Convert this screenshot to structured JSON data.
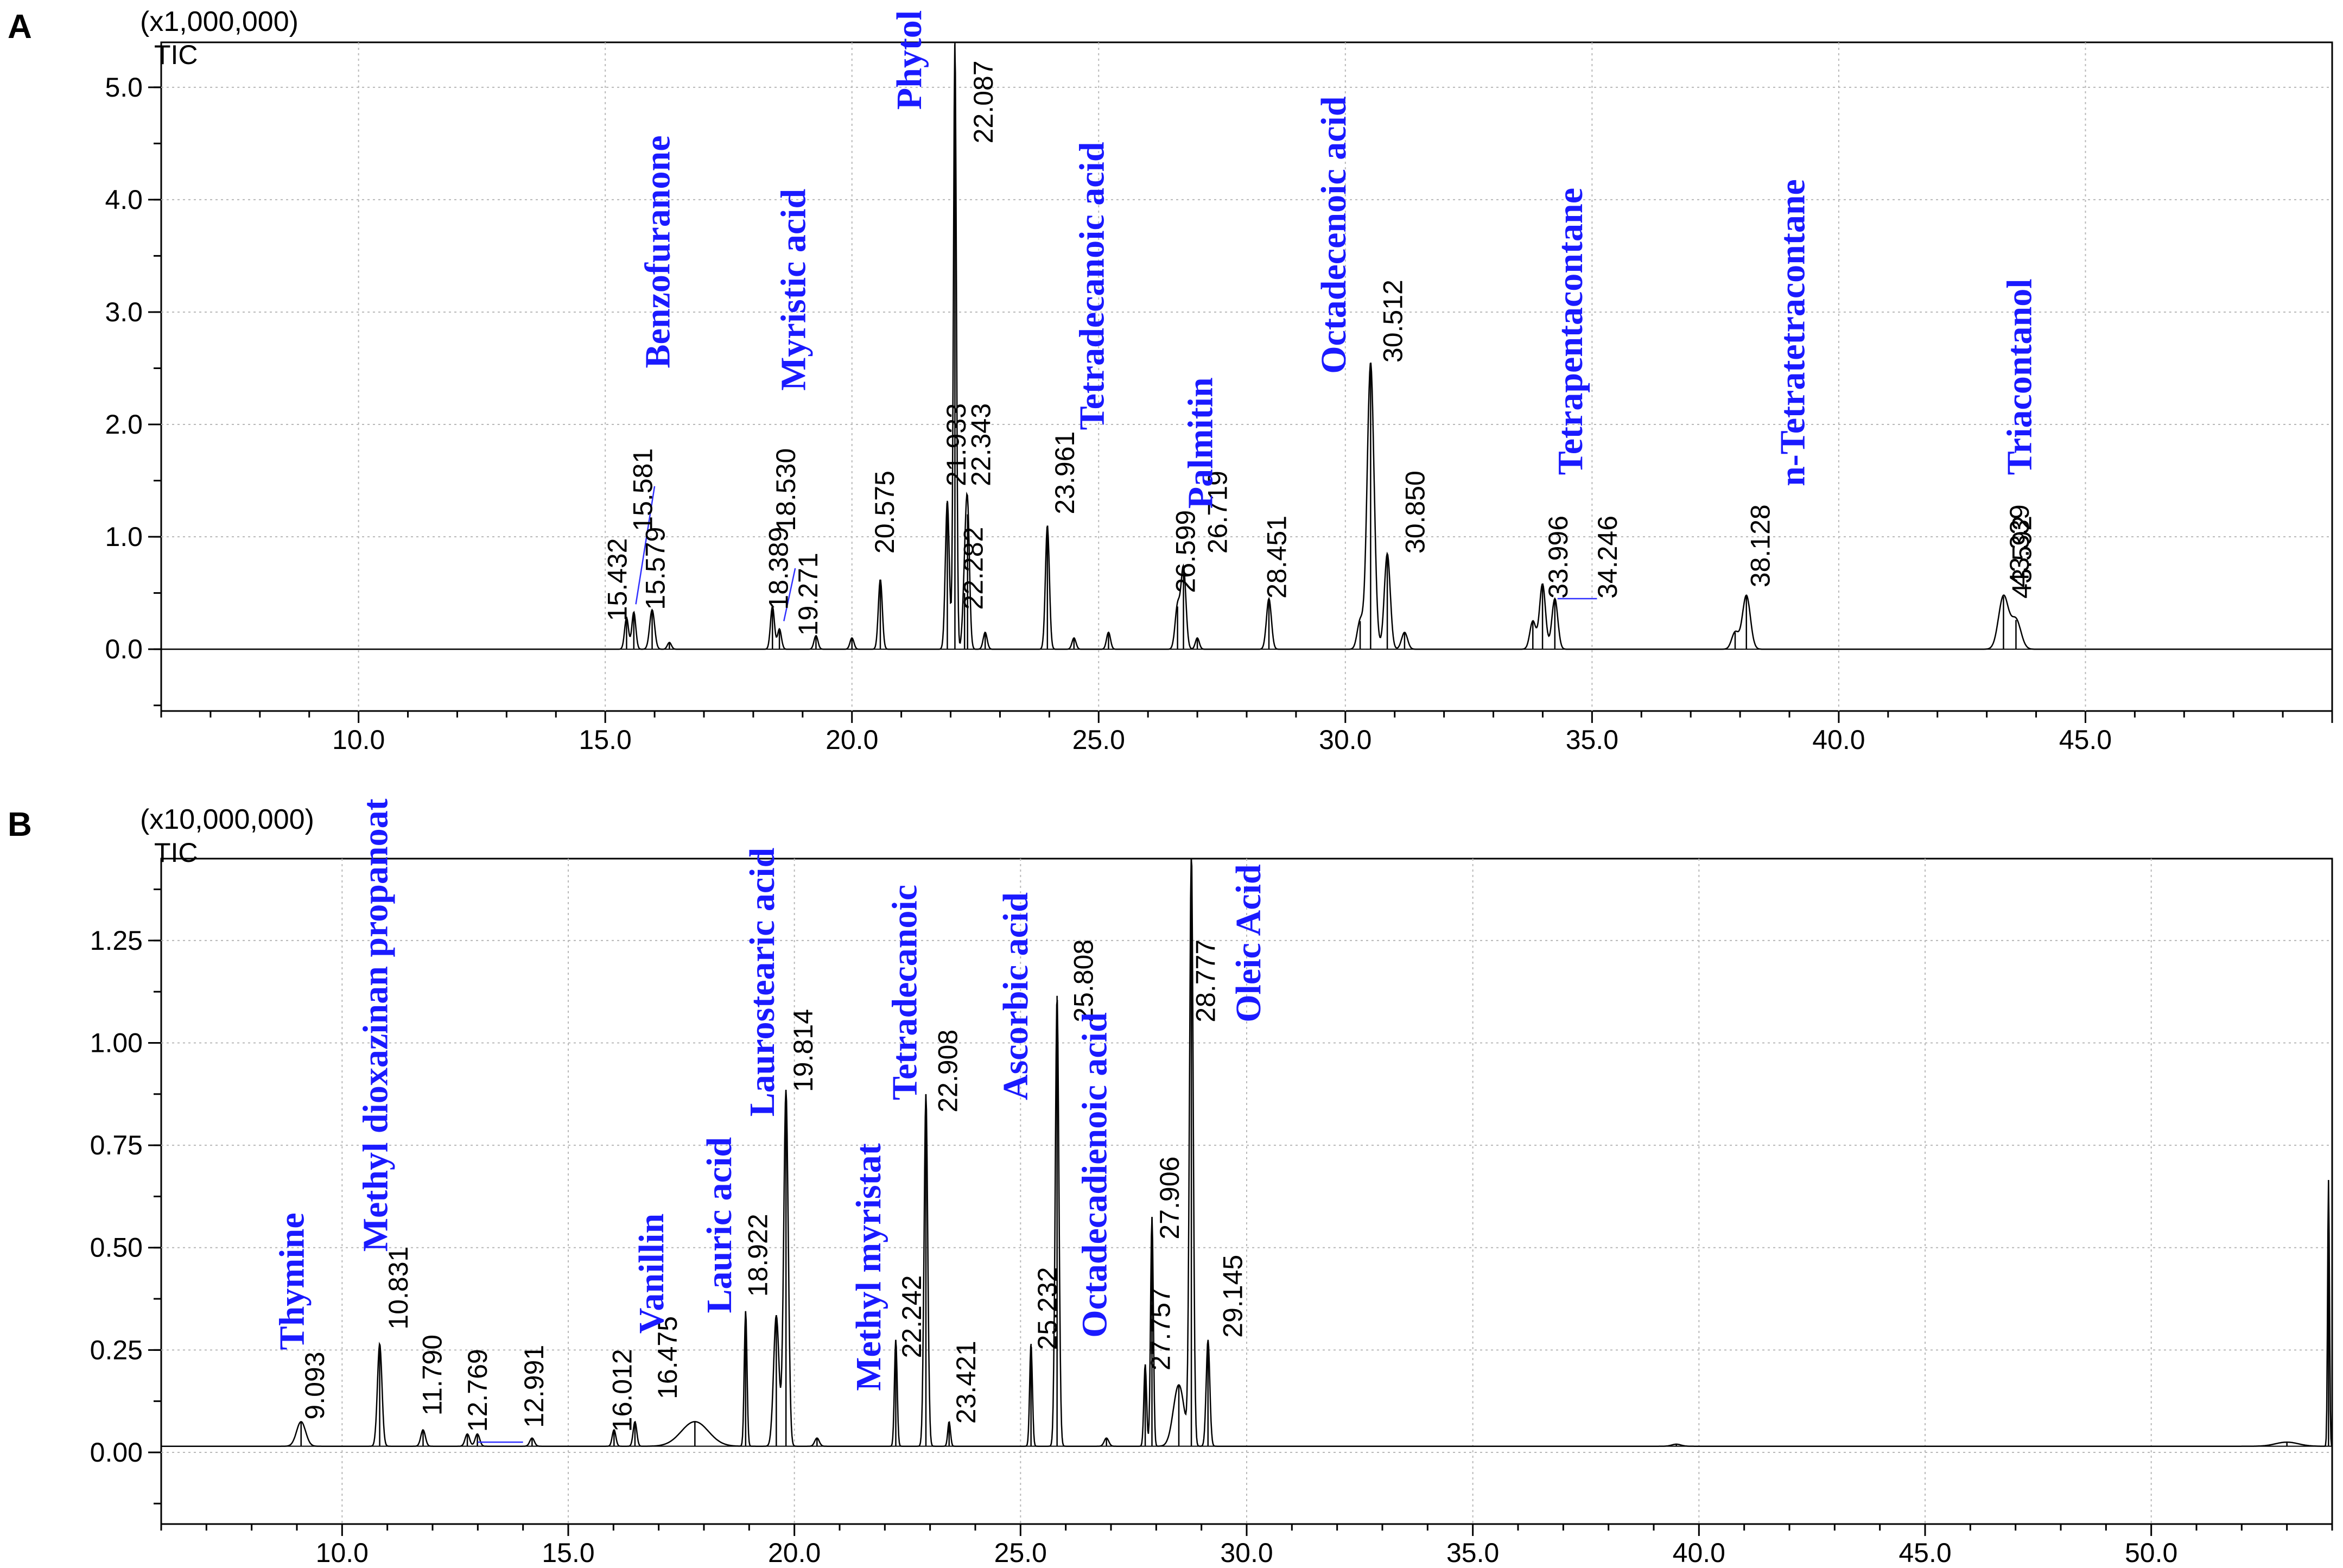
{
  "chart_data": [
    {
      "type": "line",
      "panel": "A",
      "multiplier": "(x1,000,000)",
      "ylabel": "TIC",
      "xlim": [
        6.0,
        50.0
      ],
      "ylim": [
        -0.55,
        5.4
      ],
      "xticks": [
        "10.0",
        "15.0",
        "20.0",
        "25.0",
        "30.0",
        "35.0",
        "40.0",
        "45.0"
      ],
      "yticks": [
        "0.0",
        "1.0",
        "2.0",
        "3.0",
        "4.0",
        "5.0"
      ],
      "grid": true,
      "baseline": 0.0,
      "peaks": [
        {
          "x": 15.432,
          "y": 0.28,
          "w": 0.04
        },
        {
          "x": 15.579,
          "y": 0.33,
          "w": 0.04
        },
        {
          "x": 15.95,
          "y": 0.35,
          "w": 0.05
        },
        {
          "x": 16.3,
          "y": 0.06,
          "w": 0.04
        },
        {
          "x": 18.389,
          "y": 0.38,
          "w": 0.04
        },
        {
          "x": 18.53,
          "y": 0.18,
          "w": 0.04
        },
        {
          "x": 19.271,
          "y": 0.12,
          "w": 0.04
        },
        {
          "x": 20.0,
          "y": 0.1,
          "w": 0.04
        },
        {
          "x": 20.575,
          "y": 0.62,
          "w": 0.04
        },
        {
          "x": 21.933,
          "y": 1.32,
          "w": 0.04
        },
        {
          "x": 22.087,
          "y": 5.4,
          "w": 0.03
        },
        {
          "x": 22.282,
          "y": 0.5,
          "w": 0.04
        },
        {
          "x": 22.343,
          "y": 1.2,
          "w": 0.04
        },
        {
          "x": 22.7,
          "y": 0.15,
          "w": 0.04
        },
        {
          "x": 23.961,
          "y": 1.1,
          "w": 0.04
        },
        {
          "x": 24.5,
          "y": 0.1,
          "w": 0.04
        },
        {
          "x": 25.2,
          "y": 0.15,
          "w": 0.04
        },
        {
          "x": 26.599,
          "y": 0.38,
          "w": 0.05
        },
        {
          "x": 26.719,
          "y": 0.72,
          "w": 0.05
        },
        {
          "x": 27.0,
          "y": 0.1,
          "w": 0.04
        },
        {
          "x": 28.451,
          "y": 0.45,
          "w": 0.05
        },
        {
          "x": 30.3,
          "y": 0.25,
          "w": 0.06
        },
        {
          "x": 30.512,
          "y": 2.55,
          "w": 0.07
        },
        {
          "x": 30.85,
          "y": 0.85,
          "w": 0.06
        },
        {
          "x": 31.2,
          "y": 0.15,
          "w": 0.06
        },
        {
          "x": 33.8,
          "y": 0.25,
          "w": 0.06
        },
        {
          "x": 33.996,
          "y": 0.58,
          "w": 0.06
        },
        {
          "x": 34.246,
          "y": 0.45,
          "w": 0.06
        },
        {
          "x": 37.9,
          "y": 0.15,
          "w": 0.07
        },
        {
          "x": 38.128,
          "y": 0.48,
          "w": 0.08
        },
        {
          "x": 43.339,
          "y": 0.47,
          "w": 0.1
        },
        {
          "x": 43.592,
          "y": 0.26,
          "w": 0.1
        }
      ],
      "peak_labels": [
        {
          "text": "15.432",
          "x": 15.432,
          "y": 0.25
        },
        {
          "text": "15.581",
          "x": 15.95,
          "y": 1.05
        },
        {
          "text": "15.579",
          "x": 16.2,
          "y": 0.35
        },
        {
          "text": "18.389",
          "x": 18.7,
          "y": 0.35
        },
        {
          "text": "18.530",
          "x": 18.85,
          "y": 1.05
        },
        {
          "text": "19.271",
          "x": 19.3,
          "y": 0.12
        },
        {
          "text": "20.575",
          "x": 20.85,
          "y": 0.85
        },
        {
          "text": "21.933",
          "x": 22.3,
          "y": 1.45
        },
        {
          "text": "22.087",
          "x": 22.85,
          "y": 4.5
        },
        {
          "text": "22.282",
          "x": 22.65,
          "y": 0.35
        },
        {
          "text": "22.343",
          "x": 22.8,
          "y": 1.45
        },
        {
          "text": "23.961",
          "x": 24.5,
          "y": 1.2
        },
        {
          "text": "26.599",
          "x": 26.95,
          "y": 0.5
        },
        {
          "text": "26.719",
          "x": 27.6,
          "y": 0.85
        },
        {
          "text": "28.451",
          "x": 28.8,
          "y": 0.45
        },
        {
          "text": "30.512",
          "x": 31.15,
          "y": 2.55
        },
        {
          "text": "30.850",
          "x": 31.6,
          "y": 0.85
        },
        {
          "text": "33.996",
          "x": 34.5,
          "y": 0.45
        },
        {
          "text": "34.246",
          "x": 35.5,
          "y": 0.45
        },
        {
          "text": "38.128",
          "x": 38.6,
          "y": 0.55
        },
        {
          "text": "43.339",
          "x": 43.85,
          "y": 0.55
        },
        {
          "text": "43.592",
          "x": 43.9,
          "y": 0.45
        }
      ],
      "compound_labels": [
        {
          "text": "Benzofuranone",
          "x": 16.3,
          "y": 2.5
        },
        {
          "text": "Myristic acid",
          "x": 19.05,
          "y": 2.3
        },
        {
          "text": "Phytol",
          "x": 21.4,
          "y": 4.8
        },
        {
          "text": "Tetradecanoic acid",
          "x": 25.1,
          "y": 1.95
        },
        {
          "text": "Palmitin",
          "x": 27.3,
          "y": 1.25
        },
        {
          "text": "Octadecenoic acid",
          "x": 30.0,
          "y": 2.45
        },
        {
          "text": "Tetrapentacontane",
          "x": 34.8,
          "y": 1.55
        },
        {
          "text": "n-Tetratetracontane",
          "x": 39.3,
          "y": 1.45
        },
        {
          "text": "Triacontanol",
          "x": 43.9,
          "y": 1.55
        }
      ],
      "connectors": [
        {
          "x1": 15.62,
          "y1": 0.4,
          "x2": 16.0,
          "y2": 1.45
        },
        {
          "x1": 18.62,
          "y1": 0.25,
          "x2": 18.85,
          "y2": 0.72
        },
        {
          "x1": 34.3,
          "y1": 0.45,
          "x2": 35.1,
          "y2": 0.45
        }
      ]
    },
    {
      "type": "line",
      "panel": "B",
      "multiplier": "(x10,000,000)",
      "ylabel": "TIC",
      "xlim": [
        6.0,
        54.0
      ],
      "ylim": [
        -0.175,
        1.45
      ],
      "xticks": [
        "10.0",
        "15.0",
        "20.0",
        "25.0",
        "30.0",
        "35.0",
        "40.0",
        "45.0",
        "50.0"
      ],
      "yticks": [
        "0.00",
        "0.25",
        "0.50",
        "0.75",
        "1.00",
        "1.25"
      ],
      "grid": true,
      "baseline": 0.015,
      "peaks": [
        {
          "x": 9.093,
          "y": 0.06,
          "w": 0.1
        },
        {
          "x": 10.831,
          "y": 0.25,
          "w": 0.05
        },
        {
          "x": 11.79,
          "y": 0.04,
          "w": 0.05
        },
        {
          "x": 12.769,
          "y": 0.03,
          "w": 0.05
        },
        {
          "x": 12.991,
          "y": 0.03,
          "w": 0.05
        },
        {
          "x": 14.2,
          "y": 0.02,
          "w": 0.05
        },
        {
          "x": 16.012,
          "y": 0.04,
          "w": 0.04
        },
        {
          "x": 16.475,
          "y": 0.06,
          "w": 0.04
        },
        {
          "x": 17.8,
          "y": 0.06,
          "w": 0.3
        },
        {
          "x": 18.922,
          "y": 0.33,
          "w": 0.03
        },
        {
          "x": 19.6,
          "y": 0.32,
          "w": 0.06
        },
        {
          "x": 19.814,
          "y": 0.87,
          "w": 0.05
        },
        {
          "x": 20.5,
          "y": 0.02,
          "w": 0.05
        },
        {
          "x": 22.242,
          "y": 0.26,
          "w": 0.03
        },
        {
          "x": 22.908,
          "y": 0.86,
          "w": 0.04
        },
        {
          "x": 23.421,
          "y": 0.06,
          "w": 0.03
        },
        {
          "x": 25.232,
          "y": 0.25,
          "w": 0.03
        },
        {
          "x": 25.808,
          "y": 1.1,
          "w": 0.04
        },
        {
          "x": 26.9,
          "y": 0.02,
          "w": 0.05
        },
        {
          "x": 27.757,
          "y": 0.2,
          "w": 0.03
        },
        {
          "x": 27.906,
          "y": 0.56,
          "w": 0.03
        },
        {
          "x": 28.5,
          "y": 0.15,
          "w": 0.12
        },
        {
          "x": 28.777,
          "y": 1.45,
          "w": 0.04
        },
        {
          "x": 29.145,
          "y": 0.26,
          "w": 0.04
        },
        {
          "x": 39.5,
          "y": 0.005,
          "w": 0.1
        },
        {
          "x": 53.0,
          "y": 0.01,
          "w": 0.25
        },
        {
          "x": 53.92,
          "y": 0.65,
          "w": 0.02
        }
      ],
      "peak_labels": [
        {
          "text": "9.093",
          "x": 9.6,
          "y": 0.08
        },
        {
          "text": "10.831",
          "x": 11.45,
          "y": 0.3
        },
        {
          "text": "11.790",
          "x": 12.2,
          "y": 0.09
        },
        {
          "text": "12.769",
          "x": 13.2,
          "y": 0.05
        },
        {
          "text": "12.991",
          "x": 14.45,
          "y": 0.06
        },
        {
          "text": "16.012",
          "x": 16.4,
          "y": 0.05
        },
        {
          "text": "16.475",
          "x": 17.4,
          "y": 0.13
        },
        {
          "text": "18.922",
          "x": 19.4,
          "y": 0.38
        },
        {
          "text": "19.814",
          "x": 20.4,
          "y": 0.88
        },
        {
          "text": "22.242",
          "x": 22.8,
          "y": 0.23
        },
        {
          "text": "22.908",
          "x": 23.6,
          "y": 0.83
        },
        {
          "text": "23.421",
          "x": 24.0,
          "y": 0.07
        },
        {
          "text": "25.232",
          "x": 25.8,
          "y": 0.25
        },
        {
          "text": "25.808",
          "x": 26.6,
          "y": 1.05
        },
        {
          "text": "27.757",
          "x": 28.3,
          "y": 0.2
        },
        {
          "text": "27.906",
          "x": 28.5,
          "y": 0.52
        },
        {
          "text": "28.777",
          "x": 29.3,
          "y": 1.05
        },
        {
          "text": "29.145",
          "x": 29.9,
          "y": 0.28
        }
      ],
      "compound_labels": [
        {
          "text": "Thymine",
          "x": 9.15,
          "y": 0.25
        },
        {
          "text": "Methyl dioxazinan propanoate",
          "x": 11.0,
          "y": 0.49
        },
        {
          "text": "Vanillin",
          "x": 17.1,
          "y": 0.29
        },
        {
          "text": "Lauric acid",
          "x": 18.6,
          "y": 0.34
        },
        {
          "text": "Laurostearic acid",
          "x": 19.55,
          "y": 0.82
        },
        {
          "text": "Methyl myristat",
          "x": 21.9,
          "y": 0.15
        },
        {
          "text": "Tetradecanoic",
          "x": 22.7,
          "y": 0.86
        },
        {
          "text": "Ascorbic acid",
          "x": 25.15,
          "y": 0.86
        },
        {
          "text": "Octadecadienoic acid",
          "x": 26.9,
          "y": 0.28
        },
        {
          "text": "Oleic Acid",
          "x": 30.3,
          "y": 1.05
        }
      ],
      "connectors": [
        {
          "x1": 13.0,
          "y1": 0.025,
          "x2": 14.0,
          "y2": 0.025
        }
      ]
    }
  ]
}
